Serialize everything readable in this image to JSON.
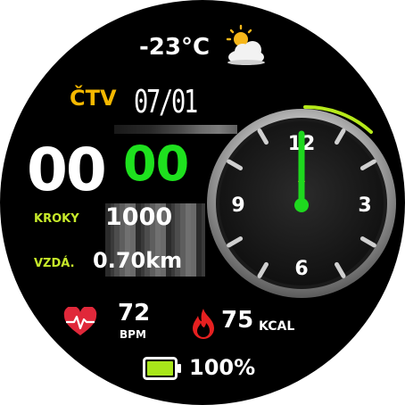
{
  "weather": {
    "temperature": "-23°C",
    "icon": "partly-cloudy-icon"
  },
  "date": {
    "day_of_week": "ČTV",
    "date": "07/01"
  },
  "time": {
    "hour": "00",
    "minute": "00"
  },
  "steps": {
    "label": "KROKY",
    "value": "1000"
  },
  "distance": {
    "label": "VZDÁ.",
    "value": "0.70km"
  },
  "analog_clock": {
    "hour_numerals": [
      "12",
      "3",
      "6",
      "9"
    ],
    "hands": {
      "hour": 12,
      "minute": 0
    }
  },
  "heart_rate": {
    "value": "72",
    "unit": "BPM",
    "icon": "heart-pulse-icon"
  },
  "calories": {
    "value": "75",
    "unit": "KCAL",
    "icon": "flame-icon"
  },
  "battery": {
    "value": "100%",
    "level": 1.0,
    "icon": "battery-icon"
  },
  "colors": {
    "accent_green": "#1ee11e",
    "label_yellow": "#c7ea2a",
    "day_orange": "#f5b800",
    "heart_red": "#e0283a"
  }
}
